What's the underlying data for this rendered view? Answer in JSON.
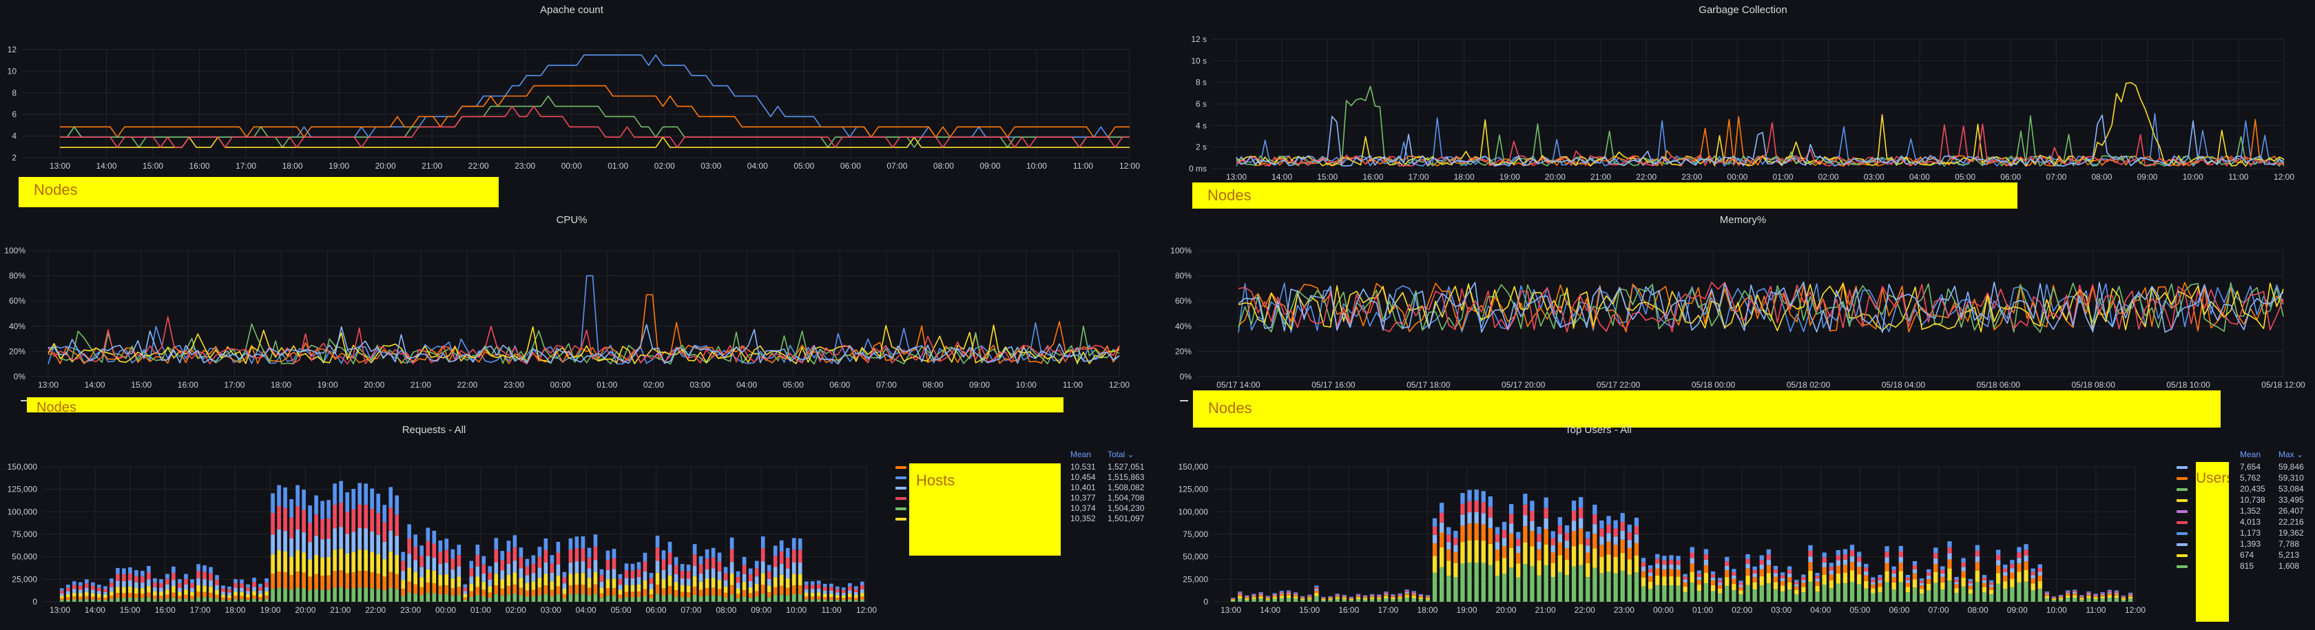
{
  "panels": [
    {
      "id": "apache",
      "title": "Apache count",
      "legend_box": "Nodes",
      "yticks": [
        "2",
        "4",
        "6",
        "8",
        "10",
        "12"
      ],
      "xticks": [
        "13:00",
        "14:00",
        "15:00",
        "16:00",
        "17:00",
        "18:00",
        "19:00",
        "20:00",
        "21:00",
        "22:00",
        "23:00",
        "00:00",
        "01:00",
        "02:00",
        "03:00",
        "04:00",
        "05:00",
        "06:00",
        "07:00",
        "08:00",
        "09:00",
        "10:00",
        "11:00",
        "12:00"
      ]
    },
    {
      "id": "gc",
      "title": "Garbage Collection",
      "legend_box": "Nodes",
      "yticks": [
        "0 ms",
        "2 s",
        "4 s",
        "6 s",
        "8 s",
        "10 s",
        "12 s"
      ],
      "xticks": [
        "13:00",
        "14:00",
        "15:00",
        "16:00",
        "17:00",
        "18:00",
        "19:00",
        "20:00",
        "21:00",
        "22:00",
        "23:00",
        "00:00",
        "01:00",
        "02:00",
        "03:00",
        "04:00",
        "05:00",
        "06:00",
        "07:00",
        "08:00",
        "09:00",
        "10:00",
        "11:00",
        "12:00"
      ]
    },
    {
      "id": "cpu",
      "title": "CPU%",
      "legend_box": "Nodes",
      "yticks": [
        "0%",
        "20%",
        "40%",
        "60%",
        "80%",
        "100%"
      ],
      "xticks": [
        "13:00",
        "14:00",
        "15:00",
        "16:00",
        "17:00",
        "18:00",
        "19:00",
        "20:00",
        "21:00",
        "22:00",
        "23:00",
        "00:00",
        "01:00",
        "02:00",
        "03:00",
        "04:00",
        "05:00",
        "06:00",
        "07:00",
        "08:00",
        "09:00",
        "10:00",
        "11:00",
        "12:00"
      ]
    },
    {
      "id": "mem",
      "title": "Memory%",
      "legend_box": "Nodes",
      "yticks": [
        "0%",
        "20%",
        "40%",
        "60%",
        "80%",
        "100%"
      ],
      "xticks": [
        "05/17 14:00",
        "05/17 16:00",
        "05/17 18:00",
        "05/17 20:00",
        "05/17 22:00",
        "05/18 00:00",
        "05/18 02:00",
        "05/18 04:00",
        "05/18 06:00",
        "05/18 08:00",
        "05/18 10:00",
        "05/18 12:00"
      ]
    },
    {
      "id": "req",
      "title": "Requests - All",
      "legend_box": "Hosts",
      "yticks": [
        "0",
        "25,000",
        "50,000",
        "75,000",
        "100,000",
        "125,000",
        "150,000"
      ],
      "xticks": [
        "13:00",
        "14:00",
        "15:00",
        "16:00",
        "17:00",
        "18:00",
        "19:00",
        "20:00",
        "21:00",
        "22:00",
        "23:00",
        "00:00",
        "01:00",
        "02:00",
        "03:00",
        "04:00",
        "05:00",
        "06:00",
        "07:00",
        "08:00",
        "09:00",
        "10:00",
        "11:00",
        "12:00"
      ],
      "legend_headers": [
        "Mean",
        "Total ⌄"
      ],
      "legend_rows": [
        {
          "color": "#ff780a",
          "mean": "10,531",
          "total": "1,527,051"
        },
        {
          "color": "#5794f2",
          "mean": "10,454",
          "total": "1,515,863"
        },
        {
          "color": "#8ab8ff",
          "mean": "10,401",
          "total": "1,508,082"
        },
        {
          "color": "#f2495c",
          "mean": "10,377",
          "total": "1,504,708"
        },
        {
          "color": "#73bf69",
          "mean": "10,374",
          "total": "1,504,230"
        },
        {
          "color": "#fade2a",
          "mean": "10,352",
          "total": "1,501,097"
        }
      ]
    },
    {
      "id": "users",
      "title": "Top Users - All",
      "legend_box": "Users",
      "yticks": [
        "0",
        "25,000",
        "50,000",
        "75,000",
        "100,000",
        "125,000",
        "150,000"
      ],
      "xticks": [
        "13:00",
        "14:00",
        "15:00",
        "16:00",
        "17:00",
        "18:00",
        "19:00",
        "20:00",
        "21:00",
        "22:00",
        "23:00",
        "00:00",
        "01:00",
        "02:00",
        "03:00",
        "04:00",
        "05:00",
        "06:00",
        "07:00",
        "08:00",
        "09:00",
        "10:00",
        "11:00",
        "12:00"
      ],
      "legend_headers": [
        "Mean",
        "Max ⌄"
      ],
      "legend_rows": [
        {
          "color": "#8ab8ff",
          "mean": "7,654",
          "total": "59,846"
        },
        {
          "color": "#ff780a",
          "mean": "5,762",
          "total": "59,310"
        },
        {
          "color": "#73bf69",
          "mean": "20,435",
          "total": "53,084"
        },
        {
          "color": "#fade2a",
          "mean": "10,738",
          "total": "33,495"
        },
        {
          "color": "#b877d9",
          "mean": "1,352",
          "total": "26,407"
        },
        {
          "color": "#f2495c",
          "mean": "4,013",
          "total": "22,216"
        },
        {
          "color": "#5794f2",
          "mean": "1,173",
          "total": "19,362"
        },
        {
          "color": "#8ab8ff",
          "mean": "1,393",
          "total": "7,788"
        },
        {
          "color": "#fade2a",
          "mean": "674",
          "total": "5,213"
        },
        {
          "color": "#73bf69",
          "mean": "815",
          "total": "1,608"
        }
      ]
    }
  ],
  "colors": {
    "series": [
      "#5794f2",
      "#ff780a",
      "#73bf69",
      "#fade2a",
      "#f2495c",
      "#8ab8ff",
      "#b877d9"
    ],
    "highlight_box": "#ffff00",
    "legend_header": "#6e9fff"
  }
}
